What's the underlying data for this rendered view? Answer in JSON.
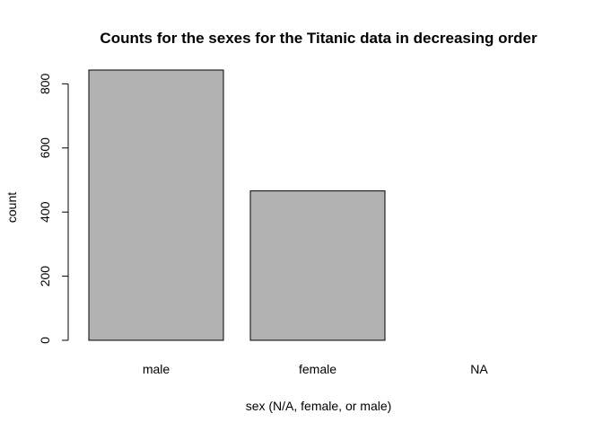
{
  "chart_data": {
    "type": "bar",
    "title": "Counts for the sexes for the Titanic data in decreasing order",
    "xlabel": "sex (N/A, female, or male)",
    "ylabel": "count",
    "categories": [
      "male",
      "female",
      "NA"
    ],
    "values": [
      843,
      466,
      0
    ],
    "yticks": [
      0,
      200,
      400,
      600,
      800
    ],
    "ylim": [
      0,
      843
    ],
    "bar_color": "#b2b2b2",
    "grid": false,
    "legend": "none"
  }
}
